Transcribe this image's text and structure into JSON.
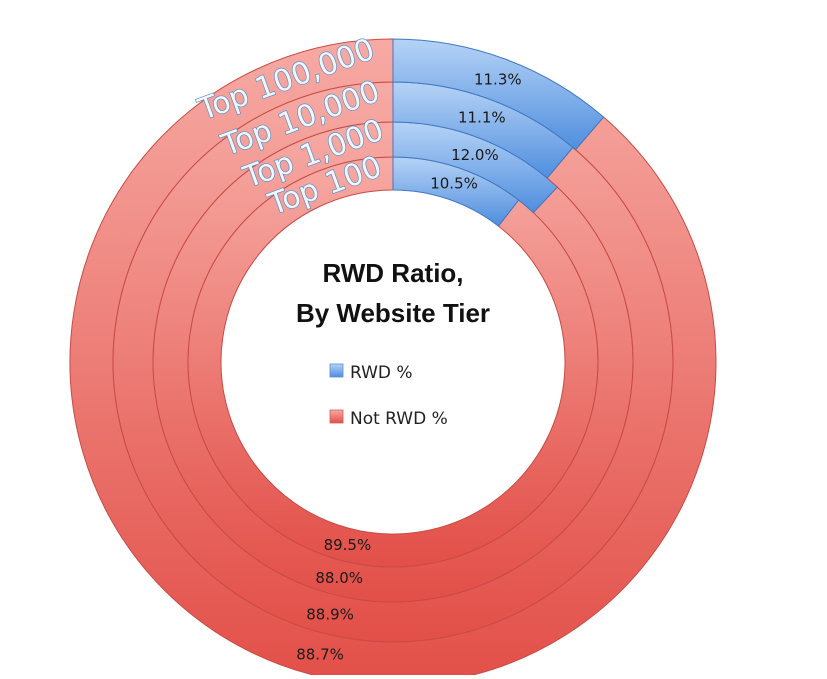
{
  "chart_data": {
    "type": "pie",
    "subtype": "nested-donut",
    "title_lines": [
      "RWD Ratio,",
      "By Website Tier"
    ],
    "categories": [
      "Top 100",
      "Top 1,000",
      "Top 10,000",
      "Top 100,000"
    ],
    "series": [
      {
        "name": "RWD %",
        "color": "#6fa6e8",
        "values": [
          10.5,
          12.0,
          11.1,
          11.3
        ],
        "labels": [
          "10.5%",
          "12.0%",
          "11.1%",
          "11.3%"
        ]
      },
      {
        "name": "Not RWD %",
        "color": "#ea6b65",
        "values": [
          89.5,
          88.0,
          88.9,
          88.7
        ],
        "labels": [
          "89.5%",
          "88.0%",
          "88.9%",
          "88.7%"
        ]
      }
    ],
    "legend": [
      "RWD %",
      "Not RWD %"
    ],
    "legend_position": "center"
  }
}
